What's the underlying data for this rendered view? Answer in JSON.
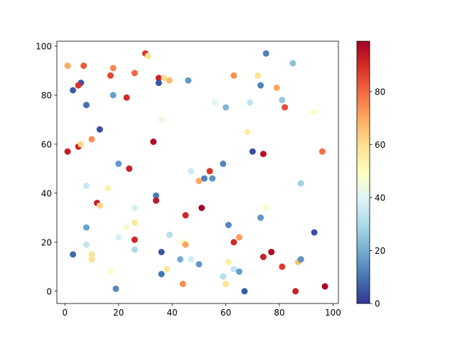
{
  "chart_data": {
    "type": "scatter",
    "title": "",
    "xlabel": "",
    "ylabel": "",
    "xlim": [
      -3,
      102
    ],
    "ylim": [
      -5,
      102
    ],
    "xticks": [
      "0",
      "20",
      "40",
      "60",
      "80",
      "100"
    ],
    "yticks": [
      "0",
      "20",
      "40",
      "60",
      "80",
      "100"
    ],
    "grid": false,
    "colormap": "RdYlBu_r",
    "colorbar": {
      "range": [
        0,
        99
      ],
      "ticks": [
        "0",
        "20",
        "40",
        "60",
        "80"
      ]
    },
    "colormap_stops": [
      "#313695",
      "#4575b4",
      "#74add1",
      "#abd9e9",
      "#e0f3f8",
      "#ffffbf",
      "#fee090",
      "#fdae61",
      "#f46d43",
      "#d73027",
      "#a50026"
    ],
    "points": [
      {
        "x": 1,
        "y": 92,
        "c": 70
      },
      {
        "x": 7,
        "y": 92,
        "c": 83
      },
      {
        "x": 30,
        "y": 97,
        "c": 88
      },
      {
        "x": 31,
        "y": 96,
        "c": 58
      },
      {
        "x": 75,
        "y": 97,
        "c": 12
      },
      {
        "x": 85,
        "y": 93,
        "c": 24
      },
      {
        "x": 6,
        "y": 85,
        "c": 5
      },
      {
        "x": 5,
        "y": 84,
        "c": 89
      },
      {
        "x": 3,
        "y": 82,
        "c": 6
      },
      {
        "x": 17,
        "y": 88,
        "c": 85
      },
      {
        "x": 18,
        "y": 91,
        "c": 75
      },
      {
        "x": 26,
        "y": 89,
        "c": 80
      },
      {
        "x": 35,
        "y": 87,
        "c": 92
      },
      {
        "x": 37,
        "y": 87,
        "c": 60
      },
      {
        "x": 39,
        "y": 86,
        "c": 67
      },
      {
        "x": 35,
        "y": 85,
        "c": 5
      },
      {
        "x": 46,
        "y": 86,
        "c": 16
      },
      {
        "x": 63,
        "y": 88,
        "c": 74
      },
      {
        "x": 72,
        "y": 88,
        "c": 58
      },
      {
        "x": 73,
        "y": 84,
        "c": 12
      },
      {
        "x": 79,
        "y": 83,
        "c": 70
      },
      {
        "x": 18,
        "y": 80,
        "c": 17
      },
      {
        "x": 23,
        "y": 79,
        "c": 90
      },
      {
        "x": 8,
        "y": 76,
        "c": 9
      },
      {
        "x": 56,
        "y": 77,
        "c": 40
      },
      {
        "x": 60,
        "y": 75,
        "c": 22
      },
      {
        "x": 69,
        "y": 77,
        "c": 34
      },
      {
        "x": 81,
        "y": 78,
        "c": 26
      },
      {
        "x": 82,
        "y": 75,
        "c": 84
      },
      {
        "x": 36,
        "y": 70,
        "c": 44
      },
      {
        "x": 93,
        "y": 73,
        "c": 49
      },
      {
        "x": 13,
        "y": 66,
        "c": 4
      },
      {
        "x": 68,
        "y": 65,
        "c": 56
      },
      {
        "x": 1,
        "y": 57,
        "c": 93
      },
      {
        "x": 5,
        "y": 59,
        "c": 91
      },
      {
        "x": 6,
        "y": 60,
        "c": 60
      },
      {
        "x": 10,
        "y": 62,
        "c": 74
      },
      {
        "x": 33,
        "y": 61,
        "c": 97
      },
      {
        "x": 70,
        "y": 57,
        "c": 4
      },
      {
        "x": 74,
        "y": 56,
        "c": 95
      },
      {
        "x": 96,
        "y": 57,
        "c": 79
      },
      {
        "x": 20,
        "y": 52,
        "c": 16
      },
      {
        "x": 24,
        "y": 50,
        "c": 92
      },
      {
        "x": 47,
        "y": 49,
        "c": 36
      },
      {
        "x": 50,
        "y": 45,
        "c": 70
      },
      {
        "x": 52,
        "y": 46,
        "c": 12
      },
      {
        "x": 54,
        "y": 49,
        "c": 88
      },
      {
        "x": 55,
        "y": 46,
        "c": 15
      },
      {
        "x": 59,
        "y": 52,
        "c": 13
      },
      {
        "x": 8,
        "y": 43,
        "c": 35
      },
      {
        "x": 16,
        "y": 42,
        "c": 54
      },
      {
        "x": 88,
        "y": 44,
        "c": 28
      },
      {
        "x": 34,
        "y": 39,
        "c": 11
      },
      {
        "x": 34,
        "y": 37,
        "c": 94
      },
      {
        "x": 12,
        "y": 36,
        "c": 93
      },
      {
        "x": 13,
        "y": 35,
        "c": 62
      },
      {
        "x": 26,
        "y": 34,
        "c": 38
      },
      {
        "x": 51,
        "y": 34,
        "c": 98
      },
      {
        "x": 45,
        "y": 31,
        "c": 91
      },
      {
        "x": 75,
        "y": 34,
        "c": 48
      },
      {
        "x": 8,
        "y": 26,
        "c": 18
      },
      {
        "x": 26,
        "y": 28,
        "c": 57
      },
      {
        "x": 23,
        "y": 26,
        "c": 46
      },
      {
        "x": 61,
        "y": 27,
        "c": 13
      },
      {
        "x": 73,
        "y": 30,
        "c": 16
      },
      {
        "x": 20,
        "y": 22,
        "c": 38
      },
      {
        "x": 26,
        "y": 21,
        "c": 91
      },
      {
        "x": 39,
        "y": 23,
        "c": 32
      },
      {
        "x": 44,
        "y": 20,
        "c": 51
      },
      {
        "x": 45,
        "y": 19,
        "c": 70
      },
      {
        "x": 63,
        "y": 20,
        "c": 90
      },
      {
        "x": 65,
        "y": 22,
        "c": 72
      },
      {
        "x": 93,
        "y": 24,
        "c": 4
      },
      {
        "x": 3,
        "y": 15,
        "c": 8
      },
      {
        "x": 8,
        "y": 19,
        "c": 34
      },
      {
        "x": 10,
        "y": 15,
        "c": 58
      },
      {
        "x": 10,
        "y": 13,
        "c": 58
      },
      {
        "x": 26,
        "y": 17,
        "c": 30
      },
      {
        "x": 36,
        "y": 16,
        "c": 5
      },
      {
        "x": 43,
        "y": 13,
        "c": 20
      },
      {
        "x": 47,
        "y": 13,
        "c": 37
      },
      {
        "x": 50,
        "y": 11,
        "c": 16
      },
      {
        "x": 61,
        "y": 12,
        "c": 55
      },
      {
        "x": 74,
        "y": 14,
        "c": 92
      },
      {
        "x": 77,
        "y": 16,
        "c": 97
      },
      {
        "x": 81,
        "y": 10,
        "c": 87
      },
      {
        "x": 87,
        "y": 12,
        "c": 66
      },
      {
        "x": 88,
        "y": 13,
        "c": 15
      },
      {
        "x": 17,
        "y": 8,
        "c": 48
      },
      {
        "x": 19,
        "y": 1,
        "c": 13
      },
      {
        "x": 36,
        "y": 7,
        "c": 10
      },
      {
        "x": 38,
        "y": 9,
        "c": 57
      },
      {
        "x": 44,
        "y": 3,
        "c": 74
      },
      {
        "x": 59,
        "y": 6,
        "c": 32
      },
      {
        "x": 60,
        "y": 3,
        "c": 58
      },
      {
        "x": 63,
        "y": 9,
        "c": 34
      },
      {
        "x": 65,
        "y": 8,
        "c": 17
      },
      {
        "x": 67,
        "y": 0,
        "c": 6
      },
      {
        "x": 86,
        "y": 0,
        "c": 92
      },
      {
        "x": 97,
        "y": 2,
        "c": 98
      }
    ]
  }
}
